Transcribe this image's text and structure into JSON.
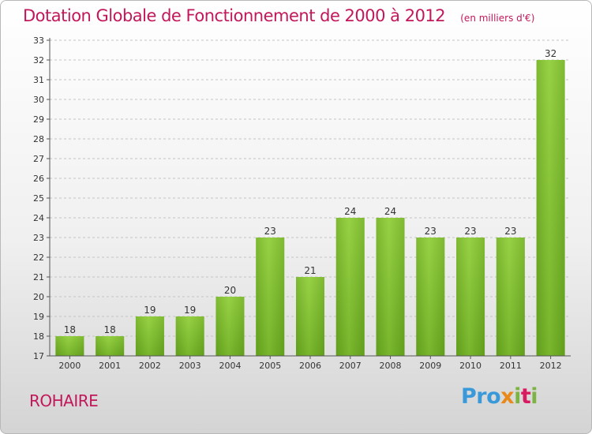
{
  "chart_data": {
    "type": "bar",
    "title": "Dotation Globale de Fonctionnement de 2000 à 2012",
    "subtitle": "(en milliers d'€)",
    "categories": [
      "2000",
      "2001",
      "2002",
      "2003",
      "2004",
      "2005",
      "2006",
      "2007",
      "2008",
      "2009",
      "2010",
      "2011",
      "2012"
    ],
    "values": [
      18,
      18,
      19,
      19,
      20,
      23,
      21,
      24,
      24,
      23,
      23,
      23,
      32
    ],
    "data_labels": [
      "18",
      "18",
      "19",
      "19",
      "20",
      "23",
      "21",
      "24",
      "24",
      "23",
      "23",
      "23",
      "32"
    ],
    "ylim": [
      17,
      33
    ],
    "yticks": [
      "17",
      "18",
      "19",
      "20",
      "21",
      "22",
      "23",
      "24",
      "25",
      "26",
      "27",
      "28",
      "29",
      "30",
      "31",
      "32",
      "33"
    ],
    "grid": "horizontal dashed",
    "bar_color": "#7cbd2e",
    "label_color": "#333333"
  },
  "commune": "ROHAIRE",
  "logo": {
    "p1": "Pro",
    "p2": "x",
    "p3": "i",
    "p4": "t",
    "p5": "i"
  }
}
